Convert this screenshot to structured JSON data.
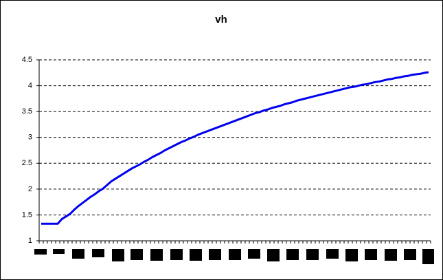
{
  "chart_data": {
    "type": "line",
    "title": "vh",
    "categories": [
      null,
      null,
      null,
      null,
      null,
      null,
      null,
      null,
      null,
      null,
      null,
      null,
      null,
      null,
      null,
      null,
      null,
      null,
      null,
      null,
      null,
      null,
      null,
      null,
      null,
      null,
      null,
      null,
      null,
      null,
      null,
      null,
      null,
      null,
      null,
      null,
      null,
      null,
      null,
      null,
      null,
      null,
      null,
      null,
      null,
      null,
      null,
      null,
      null,
      null,
      null,
      null,
      null,
      null,
      null,
      null,
      null,
      null,
      null,
      null,
      null,
      null,
      null,
      null,
      null,
      null,
      null,
      null,
      null,
      null,
      null,
      null,
      null,
      null,
      null,
      null,
      null,
      null,
      null,
      null,
      null,
      null,
      null,
      null,
      null,
      null,
      null,
      null,
      null,
      null,
      null,
      null,
      null,
      null,
      null
    ],
    "values": [
      1.33,
      1.33,
      1.33,
      1.33,
      1.33,
      1.42,
      1.47,
      1.52,
      1.6,
      1.67,
      1.73,
      1.79,
      1.85,
      1.9,
      1.96,
      2.01,
      2.08,
      2.15,
      2.2,
      2.25,
      2.3,
      2.35,
      2.4,
      2.44,
      2.48,
      2.53,
      2.57,
      2.62,
      2.66,
      2.7,
      2.75,
      2.79,
      2.83,
      2.87,
      2.91,
      2.94,
      2.98,
      3.01,
      3.05,
      3.08,
      3.11,
      3.14,
      3.17,
      3.2,
      3.23,
      3.26,
      3.29,
      3.32,
      3.35,
      3.38,
      3.41,
      3.44,
      3.47,
      3.49,
      3.52,
      3.54,
      3.57,
      3.59,
      3.61,
      3.64,
      3.66,
      3.68,
      3.71,
      3.73,
      3.75,
      3.77,
      3.79,
      3.81,
      3.83,
      3.85,
      3.87,
      3.89,
      3.91,
      3.93,
      3.95,
      3.97,
      3.98,
      4.0,
      4.02,
      4.03,
      4.05,
      4.07,
      4.08,
      4.1,
      4.12,
      4.13,
      4.15,
      4.16,
      4.18,
      4.19,
      4.21,
      4.22,
      4.23,
      4.25,
      4.26
    ],
    "color": "#0000ee",
    "ylim": [
      1,
      4.5
    ],
    "yticks": [
      1,
      1.5,
      2,
      2.5,
      3,
      3.5,
      4,
      4.5
    ],
    "grid": true
  }
}
